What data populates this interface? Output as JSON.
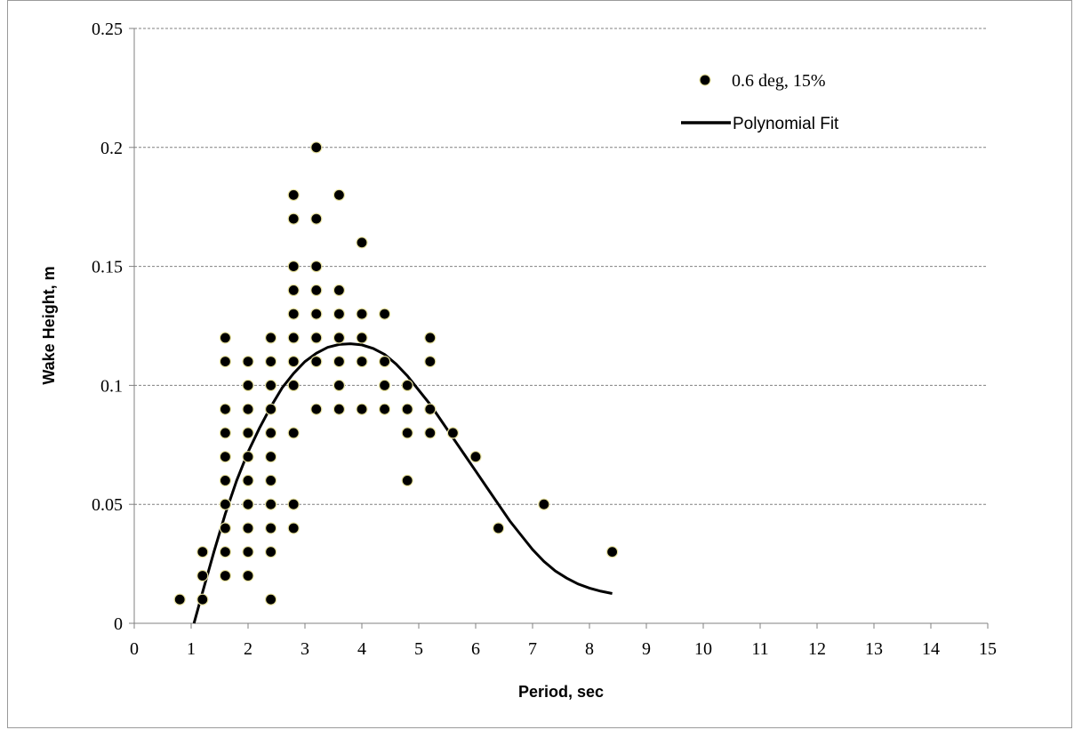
{
  "chart_data": {
    "type": "scatter",
    "title": "",
    "xlabel": "Period, sec",
    "ylabel": "Wake Height, m",
    "xlim": [
      0,
      15
    ],
    "ylim": [
      0,
      0.25
    ],
    "x_ticks": [
      "0",
      "1",
      "2",
      "3",
      "4",
      "5",
      "6",
      "7",
      "8",
      "9",
      "10",
      "11",
      "12",
      "13",
      "14",
      "15"
    ],
    "y_ticks": [
      "0",
      "0.05",
      "0.1",
      "0.15",
      "0.2",
      "0.25"
    ],
    "grid": "horizontal dashed",
    "legend_position": "top-right",
    "colors": {
      "marker_fill": "#000000",
      "marker_edge": "#e8e2a0",
      "fit_line": "#000000",
      "grid": "#808080"
    },
    "series": [
      {
        "name": "0.6 deg, 15%",
        "kind": "scatter",
        "points": [
          [
            0.8,
            0.01
          ],
          [
            1.2,
            0.01
          ],
          [
            1.2,
            0.02
          ],
          [
            1.2,
            0.03
          ],
          [
            1.6,
            0.02
          ],
          [
            1.6,
            0.03
          ],
          [
            1.6,
            0.04
          ],
          [
            1.6,
            0.05
          ],
          [
            1.6,
            0.06
          ],
          [
            1.6,
            0.07
          ],
          [
            1.6,
            0.08
          ],
          [
            1.6,
            0.09
          ],
          [
            1.6,
            0.11
          ],
          [
            1.6,
            0.12
          ],
          [
            2.0,
            0.02
          ],
          [
            2.0,
            0.03
          ],
          [
            2.0,
            0.04
          ],
          [
            2.0,
            0.05
          ],
          [
            2.0,
            0.06
          ],
          [
            2.0,
            0.07
          ],
          [
            2.0,
            0.08
          ],
          [
            2.0,
            0.09
          ],
          [
            2.0,
            0.1
          ],
          [
            2.0,
            0.11
          ],
          [
            2.4,
            0.01
          ],
          [
            2.4,
            0.03
          ],
          [
            2.4,
            0.04
          ],
          [
            2.4,
            0.05
          ],
          [
            2.4,
            0.06
          ],
          [
            2.4,
            0.07
          ],
          [
            2.4,
            0.08
          ],
          [
            2.4,
            0.09
          ],
          [
            2.4,
            0.1
          ],
          [
            2.4,
            0.11
          ],
          [
            2.4,
            0.12
          ],
          [
            2.8,
            0.04
          ],
          [
            2.8,
            0.05
          ],
          [
            2.8,
            0.08
          ],
          [
            2.8,
            0.1
          ],
          [
            2.8,
            0.11
          ],
          [
            2.8,
            0.12
          ],
          [
            2.8,
            0.13
          ],
          [
            2.8,
            0.14
          ],
          [
            2.8,
            0.15
          ],
          [
            2.8,
            0.17
          ],
          [
            2.8,
            0.18
          ],
          [
            3.2,
            0.09
          ],
          [
            3.2,
            0.11
          ],
          [
            3.2,
            0.12
          ],
          [
            3.2,
            0.13
          ],
          [
            3.2,
            0.14
          ],
          [
            3.2,
            0.15
          ],
          [
            3.2,
            0.17
          ],
          [
            3.2,
            0.2
          ],
          [
            3.6,
            0.09
          ],
          [
            3.6,
            0.1
          ],
          [
            3.6,
            0.11
          ],
          [
            3.6,
            0.12
          ],
          [
            3.6,
            0.13
          ],
          [
            3.6,
            0.14
          ],
          [
            3.6,
            0.18
          ],
          [
            4.0,
            0.09
          ],
          [
            4.0,
            0.11
          ],
          [
            4.0,
            0.12
          ],
          [
            4.0,
            0.13
          ],
          [
            4.0,
            0.16
          ],
          [
            4.4,
            0.09
          ],
          [
            4.4,
            0.1
          ],
          [
            4.4,
            0.11
          ],
          [
            4.4,
            0.13
          ],
          [
            4.8,
            0.06
          ],
          [
            4.8,
            0.08
          ],
          [
            4.8,
            0.09
          ],
          [
            4.8,
            0.1
          ],
          [
            5.2,
            0.08
          ],
          [
            5.2,
            0.09
          ],
          [
            5.2,
            0.11
          ],
          [
            5.2,
            0.12
          ],
          [
            5.6,
            0.08
          ],
          [
            6.0,
            0.07
          ],
          [
            6.4,
            0.04
          ],
          [
            7.2,
            0.05
          ],
          [
            8.4,
            0.03
          ]
        ]
      },
      {
        "name": "Polynomial Fit",
        "kind": "line",
        "points": [
          [
            1.05,
            0.0
          ],
          [
            1.2,
            0.013
          ],
          [
            1.4,
            0.03
          ],
          [
            1.6,
            0.046
          ],
          [
            1.8,
            0.06
          ],
          [
            2.0,
            0.072
          ],
          [
            2.2,
            0.082
          ],
          [
            2.4,
            0.091
          ],
          [
            2.6,
            0.099
          ],
          [
            2.8,
            0.105
          ],
          [
            3.0,
            0.11
          ],
          [
            3.2,
            0.1135
          ],
          [
            3.4,
            0.116
          ],
          [
            3.6,
            0.1172
          ],
          [
            3.8,
            0.1175
          ],
          [
            4.0,
            0.117
          ],
          [
            4.2,
            0.1155
          ],
          [
            4.4,
            0.113
          ],
          [
            4.6,
            0.109
          ],
          [
            4.8,
            0.104
          ],
          [
            5.0,
            0.098
          ],
          [
            5.2,
            0.092
          ],
          [
            5.4,
            0.085
          ],
          [
            5.6,
            0.078
          ],
          [
            5.8,
            0.071
          ],
          [
            6.0,
            0.064
          ],
          [
            6.2,
            0.057
          ],
          [
            6.4,
            0.05
          ],
          [
            6.6,
            0.043
          ],
          [
            6.8,
            0.037
          ],
          [
            7.0,
            0.031
          ],
          [
            7.2,
            0.026
          ],
          [
            7.4,
            0.022
          ],
          [
            7.6,
            0.019
          ],
          [
            7.8,
            0.0165
          ],
          [
            8.0,
            0.0148
          ],
          [
            8.2,
            0.0135
          ],
          [
            8.4,
            0.0125
          ]
        ]
      }
    ]
  }
}
